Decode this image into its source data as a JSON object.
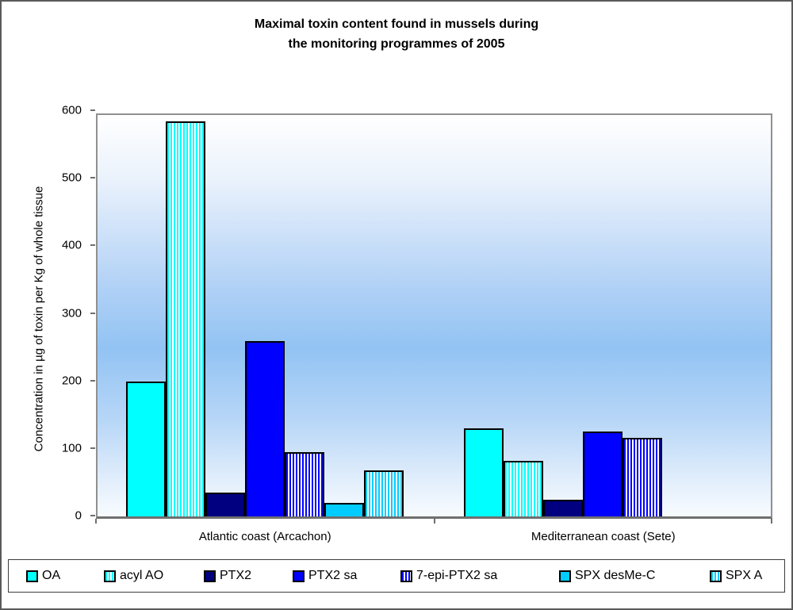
{
  "chart_data": {
    "type": "bar",
    "title": "Maximal toxin content found in mussels during the monitoring programmes of 2005",
    "title_lines": [
      "Maximal toxin content found in mussels during",
      "the monitoring programmes of 2005"
    ],
    "ylabel": "Concentration in  µg of toxin per Kg of whole tissue",
    "xlabel": "",
    "ylim": [
      0,
      600
    ],
    "yticks": [
      0,
      100,
      200,
      300,
      400,
      500,
      600
    ],
    "grid": false,
    "legend_position": "bottom",
    "plot_background": {
      "style": "vertical-gradient",
      "colors": [
        "#FFFFFF",
        "#92C3F3",
        "#F7FBFF"
      ]
    },
    "categories": [
      "Atlantic coast (Arcachon)",
      "Mediterranean coast (Sete)"
    ],
    "series": [
      {
        "name": "OA",
        "color": "#00FFFF",
        "pattern": "solid",
        "values": [
          200,
          130
        ]
      },
      {
        "name": "acyl AO",
        "color": "#00FFFF",
        "pattern": "stripes",
        "values": [
          585,
          82
        ]
      },
      {
        "name": "PTX2",
        "color": "#000080",
        "pattern": "solid",
        "values": [
          35,
          25
        ]
      },
      {
        "name": "PTX2 sa",
        "color": "#0000FF",
        "pattern": "solid",
        "values": [
          260,
          126
        ]
      },
      {
        "name": "7-epi-PTX2 sa",
        "color": "#0000FF",
        "pattern": "stripes",
        "values": [
          95,
          116
        ]
      },
      {
        "name": "SPX desMe-C",
        "color": "#00CCFF",
        "pattern": "solid",
        "values": [
          20,
          0
        ]
      },
      {
        "name": "SPX A",
        "color": "#00CCFF",
        "pattern": "stripes",
        "values": [
          68,
          0
        ]
      }
    ]
  }
}
